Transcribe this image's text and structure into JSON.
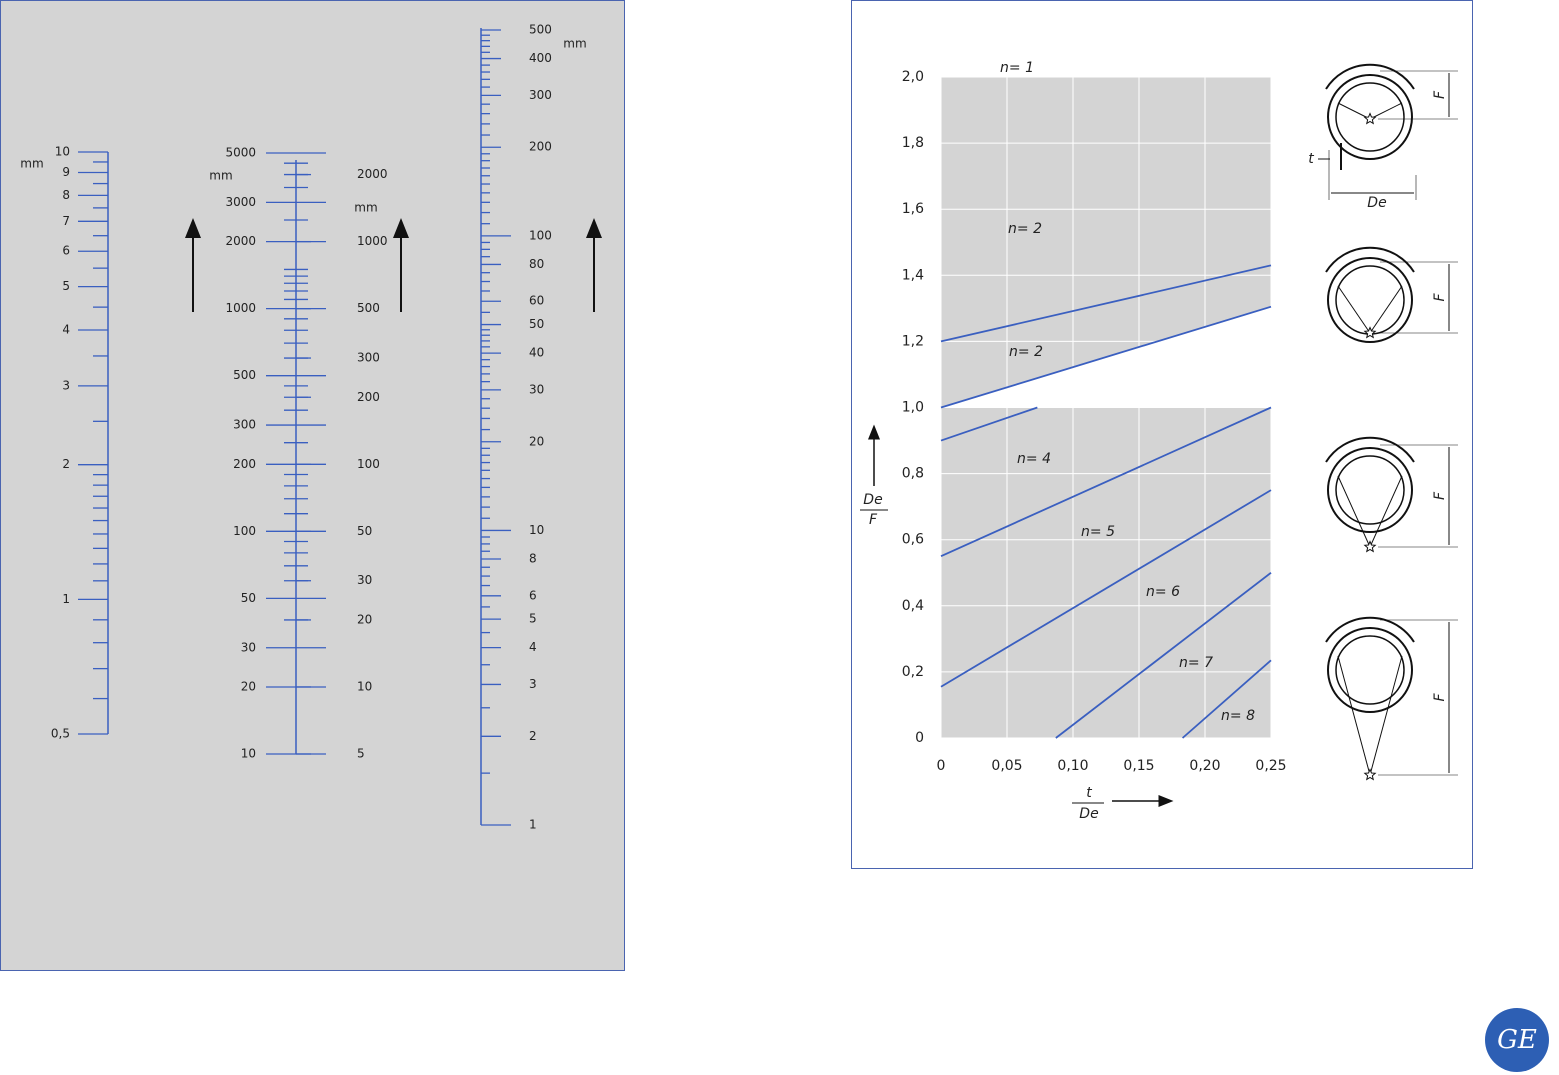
{
  "nomogram": {
    "scales": [
      {
        "unit": "mm",
        "lim": [
          0.5,
          10
        ],
        "ticks": [
          10,
          9,
          8,
          7,
          6,
          5,
          4,
          3,
          2,
          1,
          {
            "value": 0.5,
            "label": "0,5"
          }
        ],
        "minor_ticks": [
          9.5,
          8.5,
          7.5,
          6.5,
          5.5,
          4.5,
          3.5,
          2.5,
          1.9,
          1.8,
          1.7,
          1.6,
          1.5,
          1.4,
          1.3,
          1.2,
          1.1,
          0.9,
          0.8,
          0.7,
          0.6
        ]
      },
      {
        "unit": "mm",
        "lim": [
          10,
          5000
        ],
        "ticks": [
          5000,
          3000,
          2000,
          1000,
          500,
          300,
          200,
          100,
          50,
          30,
          20,
          10
        ],
        "minor_ticks": [
          4500,
          4000,
          3500,
          2500,
          1500,
          1400,
          1300,
          1200,
          1100,
          900,
          800,
          700,
          600,
          450,
          400,
          350,
          250,
          180,
          160,
          140,
          120,
          90,
          80,
          70,
          60,
          40
        ]
      },
      {
        "unit": "mm",
        "lim": [
          5,
          2500
        ],
        "ticks": [
          2000,
          1000,
          500,
          300,
          200,
          100,
          50,
          30,
          20,
          10,
          5
        ]
      },
      {
        "unit": "mm",
        "lim": [
          1,
          500
        ],
        "ticks": [
          500,
          400,
          300,
          200,
          100,
          80,
          60,
          50,
          40,
          30,
          20,
          10,
          8,
          6,
          5,
          4,
          3,
          2,
          1
        ],
        "minor_ticks": [
          1.5,
          2.5,
          3.5,
          4.5,
          5.5,
          6.5,
          7,
          7.5,
          8.5,
          9,
          9.5,
          11,
          12,
          13,
          14,
          15,
          16,
          17,
          18,
          19,
          22,
          24,
          26,
          28,
          32,
          34,
          36,
          38,
          42,
          44,
          46,
          48,
          55,
          65,
          70,
          75,
          85,
          90,
          95,
          110,
          120,
          130,
          140,
          150,
          160,
          170,
          180,
          190,
          220,
          240,
          260,
          280,
          320,
          340,
          360,
          380,
          420,
          440,
          460,
          480
        ]
      }
    ]
  },
  "chart_data": {
    "type": "line",
    "xlim": [
      0,
      0.25
    ],
    "xticks": [
      0,
      {
        "value": 0.05,
        "label": "0,05"
      },
      {
        "value": 0.1,
        "label": "0,10"
      },
      {
        "value": 0.15,
        "label": "0,15"
      },
      {
        "value": 0.2,
        "label": "0,20"
      },
      {
        "value": 0.25,
        "label": "0,25"
      }
    ],
    "ylim": [
      0,
      2
    ],
    "yticks": [
      0,
      {
        "value": 0.2,
        "label": "0,2"
      },
      {
        "value": 0.4,
        "label": "0,4"
      },
      {
        "value": 0.6,
        "label": "0,6"
      },
      {
        "value": 0.8,
        "label": "0,8"
      },
      {
        "value": 1,
        "label": "1,0"
      },
      {
        "value": 1.2,
        "label": "1,2"
      },
      {
        "value": 1.4,
        "label": "1,4"
      },
      {
        "value": 1.6,
        "label": "1,6"
      },
      {
        "value": 1.8,
        "label": "1,8"
      },
      {
        "value": 2,
        "label": "2,0"
      }
    ],
    "grid": true,
    "x_label": {
      "top": "t",
      "bottom": "De"
    },
    "y_label": {
      "top": "De",
      "bottom": "F"
    },
    "annotation": "n= 1",
    "series": [
      {
        "name": "n= 2",
        "color": "#3a5fc0",
        "x": [
          0,
          0.25
        ],
        "values": [
          1.2,
          1.43
        ]
      },
      {
        "name": "n= 2",
        "color": "#3a5fc0",
        "x": [
          0,
          0.25
        ],
        "values": [
          1.0,
          1.305
        ]
      },
      {
        "name": "n= 4",
        "color": "#3a5fc0",
        "x": [
          0,
          0.073
        ],
        "values": [
          0.9,
          1.0
        ]
      },
      {
        "name": "n= 5",
        "color": "#3a5fc0",
        "x": [
          0,
          0.25
        ],
        "values": [
          0.55,
          1.0
        ]
      },
      {
        "name": "n= 6",
        "color": "#3a5fc0",
        "x": [
          0,
          0.25
        ],
        "values": [
          0.155,
          0.75
        ]
      },
      {
        "name": "n= 7",
        "color": "#3a5fc0",
        "x": [
          0.087,
          0.25
        ],
        "values": [
          0,
          0.5
        ]
      },
      {
        "name": "n= 8",
        "color": "#3a5fc0",
        "x": [
          0.183,
          0.25
        ],
        "values": [
          0,
          0.235
        ]
      }
    ]
  },
  "diagrams": {
    "height_label": "F",
    "thickness_label": "t",
    "diameter_label": "De"
  },
  "logo": "GE"
}
